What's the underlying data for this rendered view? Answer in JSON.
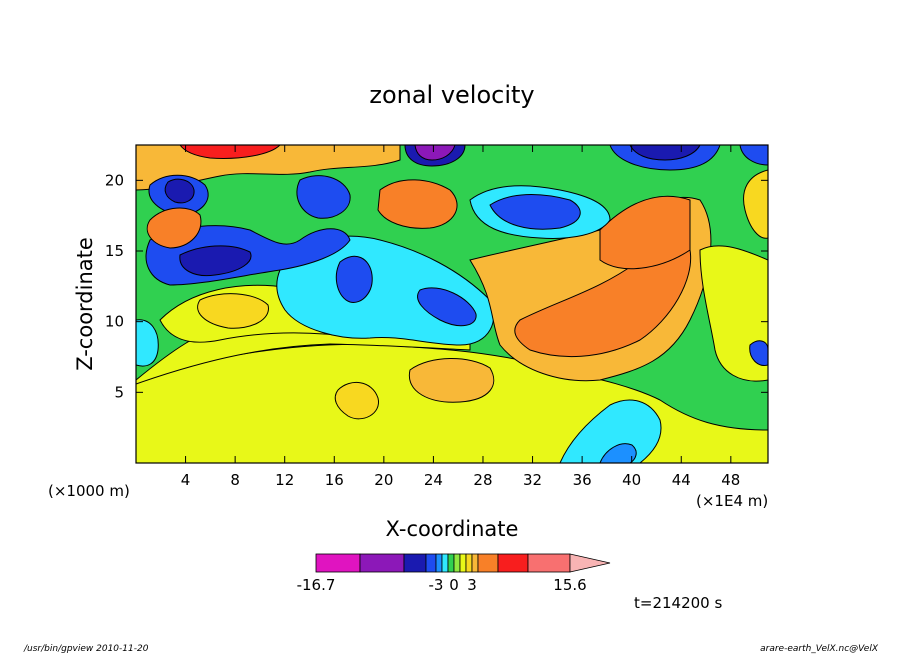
{
  "chart_data": {
    "type": "heatmap",
    "title": "zonal velocity",
    "xlabel": "X-coordinate",
    "ylabel": "Z-coordinate",
    "x_unit_left": "(×1000 m)",
    "x_unit_right": "(×1E4 m)",
    "xlim": [
      0,
      51
    ],
    "ylim": [
      0,
      22.5
    ],
    "x_ticks": [
      4,
      8,
      12,
      16,
      20,
      24,
      28,
      32,
      36,
      40,
      44,
      48
    ],
    "y_ticks": [
      5,
      10,
      15,
      20
    ],
    "colorbar": {
      "levels": [
        -16.7,
        -13,
        -9,
        -6,
        -3,
        -2,
        -1,
        0,
        1,
        2,
        3,
        6,
        9,
        12,
        15.6
      ],
      "colors": [
        "#e014c0",
        "#8c18b8",
        "#1a1ab0",
        "#1e4cf0",
        "#1c90ff",
        "#30e8ff",
        "#30d050",
        "#90e840",
        "#e8f818",
        "#f8d820",
        "#f8b838",
        "#f88028",
        "#f81e1e",
        "#f87070",
        "#f8b4b4"
      ],
      "tick_labels": [
        "-16.7",
        "-3",
        "0",
        "3",
        "15.6"
      ]
    },
    "time_label": "t=214200 s"
  },
  "footer": {
    "left": "/usr/bin/gpview   2010-11-20",
    "right": "arare-earth_VelX.nc@VelX"
  }
}
